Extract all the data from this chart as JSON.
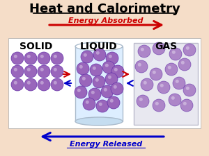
{
  "title": "Heat and Calorimetry",
  "title_fontsize": 13,
  "title_color": "#000000",
  "bg_color": "#f5ddc8",
  "white_panel_color": "#ffffff",
  "energy_absorbed_text": "Energy Absorbed",
  "energy_released_text": "Energy Released",
  "arrow_color_red": "#cc0000",
  "arrow_color_blue": "#0000cc",
  "solid_label": "SOLID",
  "liquid_label": "LIQUID",
  "gas_label": "GAS",
  "label_fontsize": 10,
  "sphere_color": "#9966bb",
  "sphere_edge": "#6633aa",
  "cyl_fill": "#ddeeff",
  "cyl_edge": "#aabbcc",
  "gas_fill": "#e8e8f0",
  "gas_edge": "#bbbbcc"
}
